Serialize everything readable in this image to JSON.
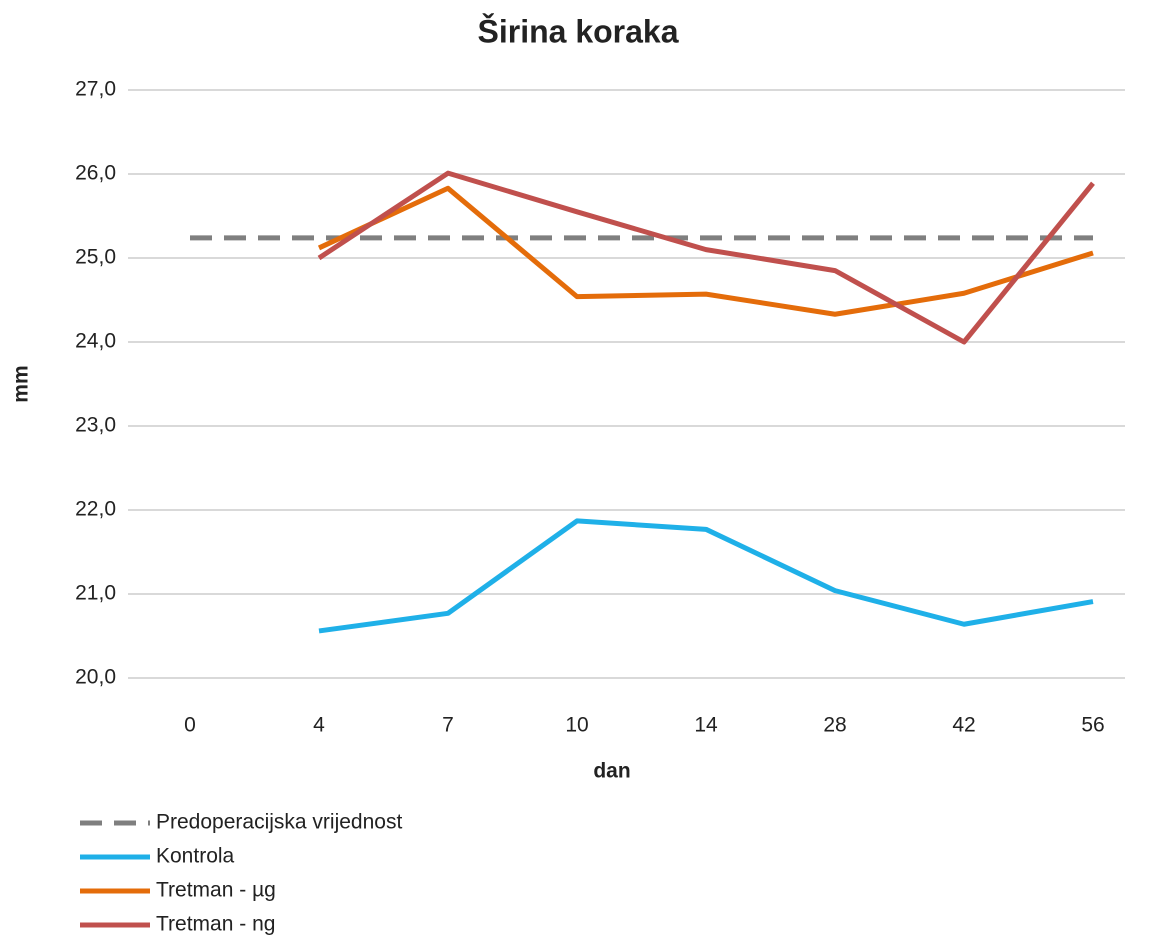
{
  "chart_data": {
    "type": "line",
    "title": "Širina koraka",
    "xlabel": "dan",
    "ylabel": "mm",
    "categories": [
      "0",
      "4",
      "7",
      "10",
      "14",
      "28",
      "42",
      "56"
    ],
    "ylim": [
      20,
      27
    ],
    "yticks": [
      {
        "value": 20,
        "label": "20,0"
      },
      {
        "value": 21,
        "label": "21,0"
      },
      {
        "value": 22,
        "label": "22,0"
      },
      {
        "value": 23,
        "label": "23,0"
      },
      {
        "value": 24,
        "label": "24,0"
      },
      {
        "value": 25,
        "label": "25,0"
      },
      {
        "value": 26,
        "label": "26,0"
      },
      {
        "value": 27,
        "label": "27,0"
      }
    ],
    "grid": true,
    "legend": "bottom",
    "series": [
      {
        "name": "Predoperacijska vrijednost",
        "color": "#7f7f7f",
        "dashed": true,
        "values": [
          25.24,
          25.24,
          25.24,
          25.24,
          25.24,
          25.24,
          25.24,
          25.24
        ]
      },
      {
        "name": "Kontrola",
        "color": "#1fb0e8",
        "values": [
          null,
          20.56,
          20.77,
          21.87,
          21.77,
          21.04,
          20.64,
          20.91
        ]
      },
      {
        "name": "Tretman - µg",
        "color": "#e46c0a",
        "values": [
          null,
          25.12,
          25.83,
          24.54,
          24.57,
          24.33,
          24.58,
          25.06
        ]
      },
      {
        "name": "Tretman - ng",
        "color": "#c0504d",
        "values": [
          null,
          25.0,
          26.01,
          25.55,
          25.1,
          24.85,
          24.0,
          25.89
        ]
      }
    ]
  }
}
